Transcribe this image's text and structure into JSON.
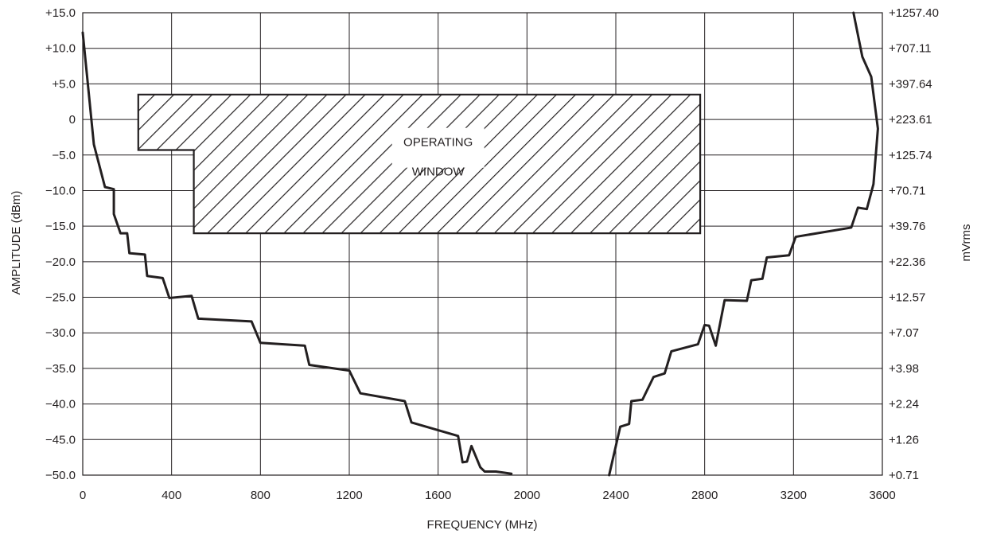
{
  "chart_data": {
    "type": "line",
    "xlabel": "FREQUENCY (MHz)",
    "ylabel_left": "AMPLITUDE (dBm)",
    "ylabel_right": "mVrms",
    "xlim": [
      0,
      3600
    ],
    "ylim": [
      -50,
      15
    ],
    "grid": true,
    "x_ticks": [
      0,
      400,
      800,
      1200,
      1600,
      2000,
      2400,
      2800,
      3200,
      3600
    ],
    "x_tick_labels": [
      "0",
      "400",
      "800",
      "1200",
      "1600",
      "2000",
      "2400",
      "2800",
      "3200",
      "3600"
    ],
    "y_ticks": [
      15,
      10,
      5,
      0,
      -5,
      -10,
      -15,
      -20,
      -25,
      -30,
      -35,
      -40,
      -45,
      -50
    ],
    "y_left_tick_labels": [
      "+15.0",
      "+10.0",
      "+5.0",
      "0",
      "−5.0",
      "−10.0",
      "−15.0",
      "−20.0",
      "−25.0",
      "−30.0",
      "−35.0",
      "−40.0",
      "−45.0",
      "−50.0"
    ],
    "y_right_tick_labels": [
      "+1257.40",
      "+707.11",
      "+397.64",
      "+223.61",
      "+125.74",
      "+70.71",
      "+39.76",
      "+22.36",
      "+12.57",
      "+7.07",
      "+3.98",
      "+2.24",
      "+1.26",
      "+0.71"
    ],
    "operating_window": {
      "label_lines": [
        "OPERATING",
        "WINDOW"
      ],
      "polygon": [
        [
          250,
          3.5
        ],
        [
          2780,
          3.5
        ],
        [
          2780,
          -16
        ],
        [
          500,
          -16
        ],
        [
          500,
          -4.3
        ],
        [
          250,
          -4.3
        ]
      ]
    },
    "series": [
      {
        "values": [
          [
            0,
            12.2
          ],
          [
            50,
            -3.5
          ],
          [
            100,
            -9.5
          ],
          [
            140,
            -9.8
          ],
          [
            140,
            -13.3
          ],
          [
            170,
            -16
          ],
          [
            200,
            -16
          ],
          [
            210,
            -18.8
          ],
          [
            280,
            -19
          ],
          [
            290,
            -22
          ],
          [
            360,
            -22.3
          ],
          [
            390,
            -25.1
          ],
          [
            490,
            -24.8
          ],
          [
            520,
            -28
          ],
          [
            760,
            -28.4
          ],
          [
            800,
            -31.4
          ],
          [
            1000,
            -31.8
          ],
          [
            1020,
            -34.5
          ],
          [
            1200,
            -35.3
          ],
          [
            1250,
            -38.5
          ],
          [
            1450,
            -39.6
          ],
          [
            1480,
            -42.6
          ],
          [
            1690,
            -44.5
          ],
          [
            1710,
            -48.2
          ],
          [
            1730,
            -48.1
          ],
          [
            1750,
            -45.9
          ],
          [
            1790,
            -48.9
          ],
          [
            1810,
            -49.5
          ],
          [
            1860,
            -49.5
          ],
          [
            1930,
            -49.8
          ]
        ]
      },
      {
        "values": [
          [
            2370,
            -50
          ],
          [
            2420,
            -43.2
          ],
          [
            2460,
            -42.8
          ],
          [
            2470,
            -39.6
          ],
          [
            2520,
            -39.4
          ],
          [
            2570,
            -36.2
          ],
          [
            2620,
            -35.7
          ],
          [
            2650,
            -32.6
          ],
          [
            2770,
            -31.6
          ],
          [
            2800,
            -28.9
          ],
          [
            2820,
            -29
          ],
          [
            2850,
            -31.8
          ],
          [
            2890,
            -25.4
          ],
          [
            2990,
            -25.5
          ],
          [
            3010,
            -22.6
          ],
          [
            3060,
            -22.4
          ],
          [
            3080,
            -19.4
          ],
          [
            3180,
            -19.1
          ],
          [
            3210,
            -16.5
          ],
          [
            3460,
            -15.2
          ],
          [
            3490,
            -12.4
          ],
          [
            3530,
            -12.6
          ],
          [
            3560,
            -9.1
          ],
          [
            3580,
            -1.3
          ],
          [
            3550,
            6
          ],
          [
            3510,
            8.8
          ],
          [
            3470,
            15
          ]
        ]
      }
    ]
  }
}
